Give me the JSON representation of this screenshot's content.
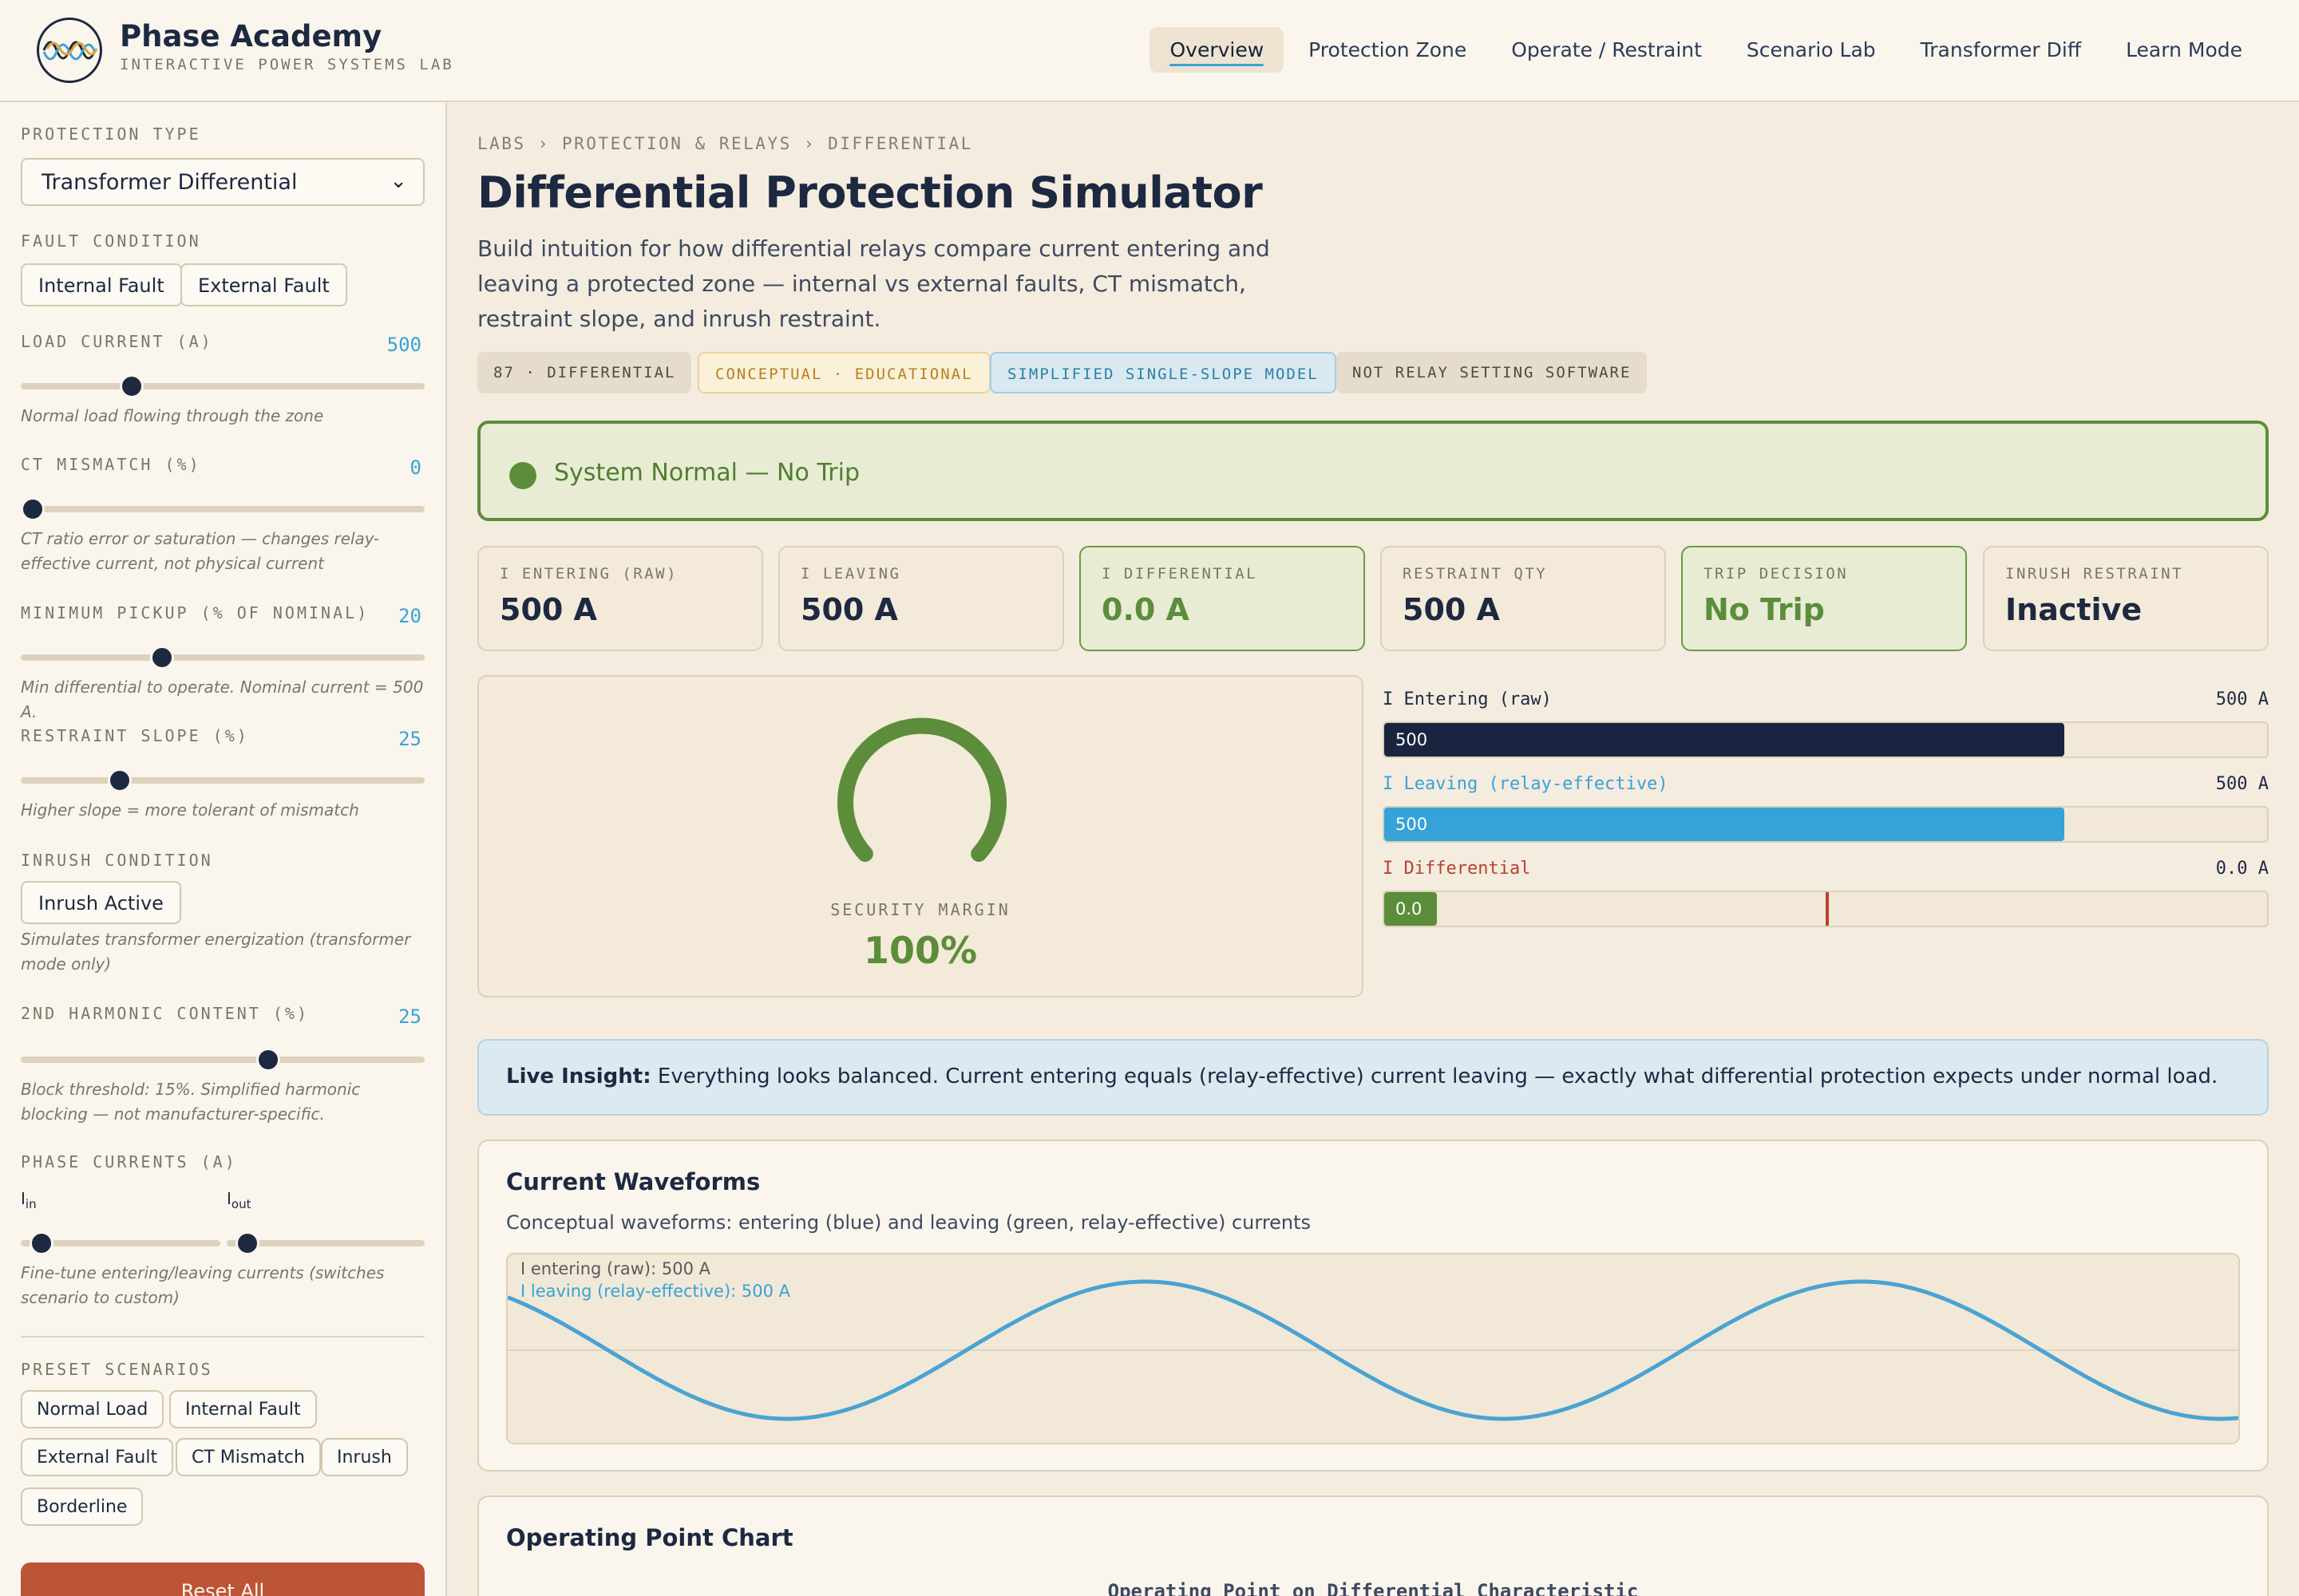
{
  "header": {
    "brand_name": "Phase Academy",
    "brand_sub": "INTERACTIVE POWER SYSTEMS LAB",
    "nav": [
      "Overview",
      "Protection Zone",
      "Operate / Restraint",
      "Scenario Lab",
      "Transformer Diff",
      "Learn Mode"
    ],
    "active_nav": "Overview",
    "accent": "#36a3d8"
  },
  "sidebar": {
    "protection_type": {
      "label": "PROTECTION TYPE",
      "value": "Transformer Differential"
    },
    "fault_condition": {
      "label": "FAULT CONDITION",
      "options": [
        "Internal Fault",
        "External Fault"
      ]
    },
    "load_current": {
      "label": "LOAD CURRENT (A)",
      "value": "500",
      "level": 0.26,
      "note": "Normal load flowing through the zone"
    },
    "ct_mismatch": {
      "label": "CT MISMATCH (%)",
      "value": "0",
      "level": 0.0,
      "note": "CT ratio error or saturation — changes relay-effective current, not physical current"
    },
    "min_pickup": {
      "label": "MINIMUM PICKUP (% OF NOMINAL)",
      "value": "20",
      "level": 0.34,
      "note": "Min differential to operate. Nominal current = 500 A."
    },
    "restraint_slope": {
      "label": "RESTRAINT SLOPE (%)",
      "value": "25",
      "level": 0.23,
      "note": "Higher slope = more tolerant of mismatch"
    },
    "inrush": {
      "label": "INRUSH CONDITION",
      "button": "Inrush Active",
      "note": "Simulates transformer energization (transformer mode only)"
    },
    "harmonic": {
      "label": "2ND HARMONIC CONTENT (%)",
      "value": "25",
      "level": 0.62,
      "note": "Block threshold: 15%. Simplified harmonic blocking — not manufacturer-specific."
    },
    "phase_currents": {
      "label": "PHASE CURRENTS (A)",
      "in_label": "I",
      "in_sub": "in",
      "out_label": "I",
      "out_sub": "out",
      "in_level": 0.05,
      "out_level": 0.05,
      "note": "Fine-tune entering/leaving currents (switches scenario to custom)"
    },
    "presets": {
      "label": "PRESET SCENARIOS",
      "items": [
        "Normal Load",
        "Internal Fault",
        "External Fault",
        "CT Mismatch",
        "Inrush",
        "Borderline"
      ]
    },
    "reset_label": "Reset All"
  },
  "main": {
    "breadcrumb": "LABS › PROTECTION & RELAYS › DIFFERENTIAL",
    "title": "Differential Protection Simulator",
    "description": "Build intuition for how differential relays compare current entering and leaving a protected zone — internal vs external faults, CT mismatch, restraint slope, and inrush restraint.",
    "tags": [
      "87 · DIFFERENTIAL",
      "CONCEPTUAL · EDUCATIONAL",
      "SIMPLIFIED SINGLE-SLOPE MODEL",
      "NOT RELAY SETTING SOFTWARE"
    ],
    "status": {
      "text": "System Normal — No Trip",
      "color": "#5c8d3a"
    },
    "kpis": [
      {
        "label": "I ENTERING (RAW)",
        "value": "500 A",
        "highlight": false
      },
      {
        "label": "I LEAVING",
        "value": "500 A",
        "highlight": false
      },
      {
        "label": "I DIFFERENTIAL",
        "value": "0.0 A",
        "highlight": true
      },
      {
        "label": "RESTRAINT QTY",
        "value": "500 A",
        "highlight": false
      },
      {
        "label": "TRIP DECISION",
        "value": "No Trip",
        "highlight": true
      },
      {
        "label": "INRUSH RESTRAINT",
        "value": "Inactive",
        "highlight": false
      }
    ],
    "gauge": {
      "label": "SECURITY MARGIN",
      "value": "100%",
      "level": 1.0,
      "color": "#5c8d3a"
    },
    "bars": [
      {
        "label": "I Entering (raw)",
        "value": "500 A",
        "fill_text": "500",
        "level": 0.77,
        "color": "#1a2440",
        "label_color": "#1d2841"
      },
      {
        "label": "I Leaving (relay-effective)",
        "value": "500 A",
        "fill_text": "500",
        "level": 0.77,
        "color": "#36a3d8",
        "label_color": "#36a3d8"
      },
      {
        "label": "I Differential",
        "value": "0.0 A",
        "fill_text": "0.0",
        "level": 0.06,
        "color": "#5c8d3a",
        "label_color": "#b8432d",
        "threshold_level": 0.5
      }
    ],
    "insight": {
      "prefix": "Live Insight:",
      "text": "Everything looks balanced. Current entering equals (relay-effective) current leaving — exactly what differential protection expects under normal load."
    },
    "waveforms": {
      "title": "Current Waveforms",
      "subtitle": "Conceptual waveforms: entering (blue) and leaving (green, relay-effective) currents",
      "legend_in": "I entering (raw): 500 A",
      "legend_out": "I leaving (relay-effective): 500 A",
      "wave_color": "#4aa3d2"
    },
    "operating_chart": {
      "title": "Operating Point Chart",
      "heading": "Operating Point on Differential Characteristic"
    }
  }
}
